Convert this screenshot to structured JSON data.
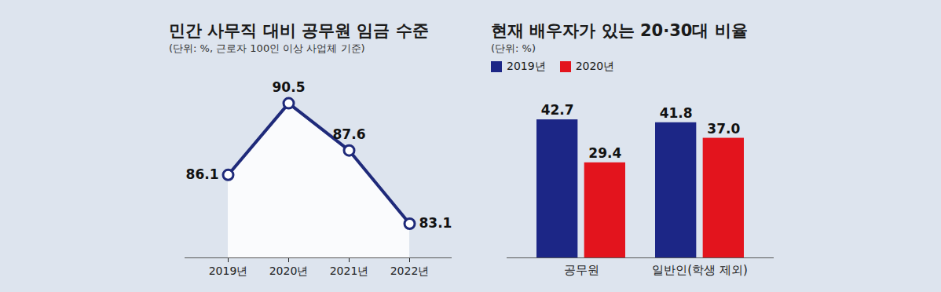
{
  "chart_data": [
    {
      "type": "line",
      "title": "민간 사무직 대비 공무원 임금 수준",
      "subtitle": "(단위: %, 근로자 100인 이상 사업체 기준)",
      "categories": [
        "2019년",
        "2020년",
        "2021년",
        "2022년"
      ],
      "values": [
        86.1,
        90.5,
        87.6,
        83.1
      ],
      "color": "#1f2a7a",
      "marker": "circle",
      "ylim": [
        81,
        92
      ],
      "data_labels": true,
      "tick_labels": "x"
    },
    {
      "type": "bar",
      "title": "현재 배우자가 있는 20·30대 비율",
      "subtitle": "(단위: %)",
      "categories": [
        "공무원",
        "일반인(학생 제외)"
      ],
      "series": [
        {
          "name": "2019년",
          "color": "#1c2686",
          "values": [
            42.7,
            41.8
          ],
          "value_labels": [
            "42.7",
            "41.8"
          ]
        },
        {
          "name": "2020년",
          "color": "#e3141d",
          "values": [
            29.4,
            37.0
          ],
          "value_labels": [
            "29.4",
            "37.0"
          ]
        }
      ],
      "ylim": [
        0,
        50
      ],
      "legend": "top-left",
      "data_labels": true,
      "tick_labels": "x"
    }
  ]
}
